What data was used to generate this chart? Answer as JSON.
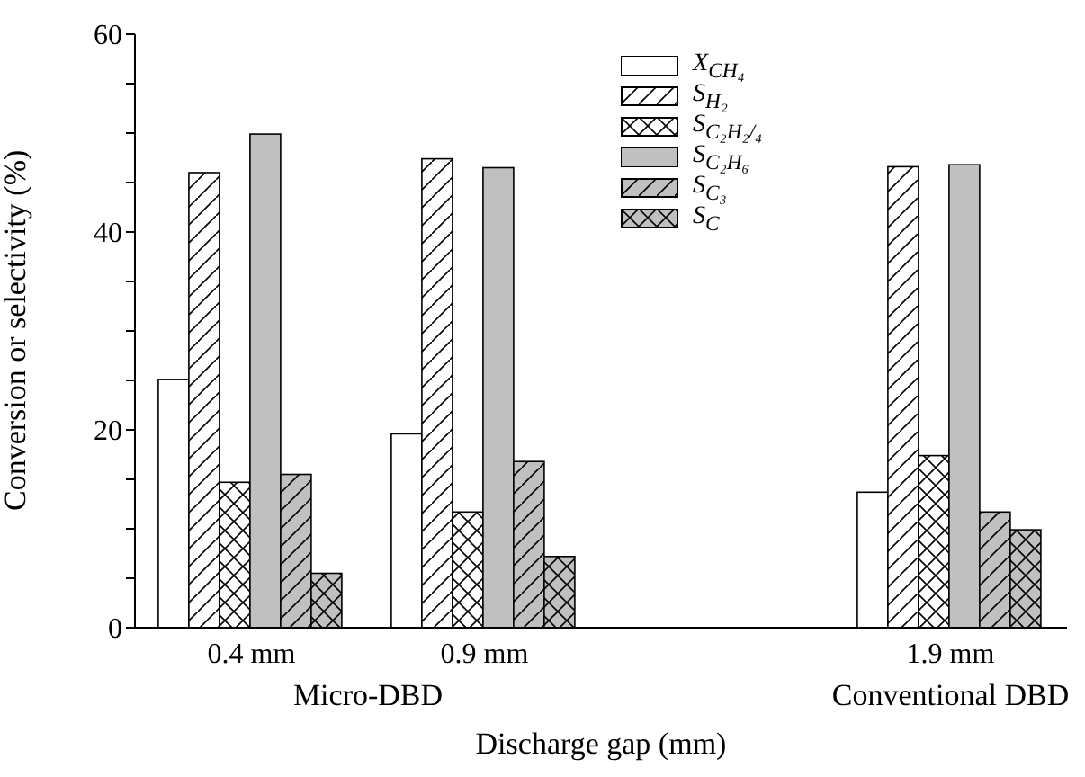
{
  "chart_data": {
    "type": "bar",
    "xlabel": "Discharge gap (mm)",
    "ylabel": "Conversion or selectivity (%)",
    "categories": [
      "0.4 mm",
      "0.9 mm",
      null,
      "1.9 mm"
    ],
    "series": [
      {
        "name": "X$_{CH₄}$",
        "color": "#ffffff",
        "values": [
          25.1,
          19.6,
          null,
          13.7
        ]
      },
      {
        "name": "S$_{H₂}$",
        "color": "#ffffff",
        "values": [
          46.0,
          47.4,
          null,
          46.6
        ]
      },
      {
        "name": "S$_{C₂H₂/₄}$",
        "color": "#ffffff",
        "values": [
          14.7,
          11.7,
          null,
          17.4
        ]
      },
      {
        "name": "S$_{C₂H₆}$",
        "color": "#c0c0c0",
        "values": [
          49.9,
          46.5,
          null,
          46.8
        ]
      },
      {
        "name": "S$_{C₃}$",
        "color": "#c0c0c0",
        "values": [
          15.5,
          16.8,
          null,
          11.7
        ]
      },
      {
        "name": "S$_{C}$",
        "color": "#c0c0c0",
        "values": [
          5.5,
          7.2,
          null,
          9.9
        ]
      }
    ],
    "ylim": [
      0,
      60
    ],
    "yticks": [
      0,
      {
        "value": 5,
        "label": null
      },
      {
        "value": 10,
        "label": null
      },
      {
        "value": 15,
        "label": null
      },
      20,
      {
        "value": 25,
        "label": null
      },
      {
        "value": 30,
        "label": null
      },
      {
        "value": 35,
        "label": null
      },
      40,
      {
        "value": 45,
        "label": null
      },
      {
        "value": 50,
        "label": null
      },
      {
        "value": 55,
        "label": null
      },
      60
    ],
    "annotations": [
      "Micro-DBD",
      "Conventional DBD"
    ],
    "legend": "top",
    "grid": false
  }
}
